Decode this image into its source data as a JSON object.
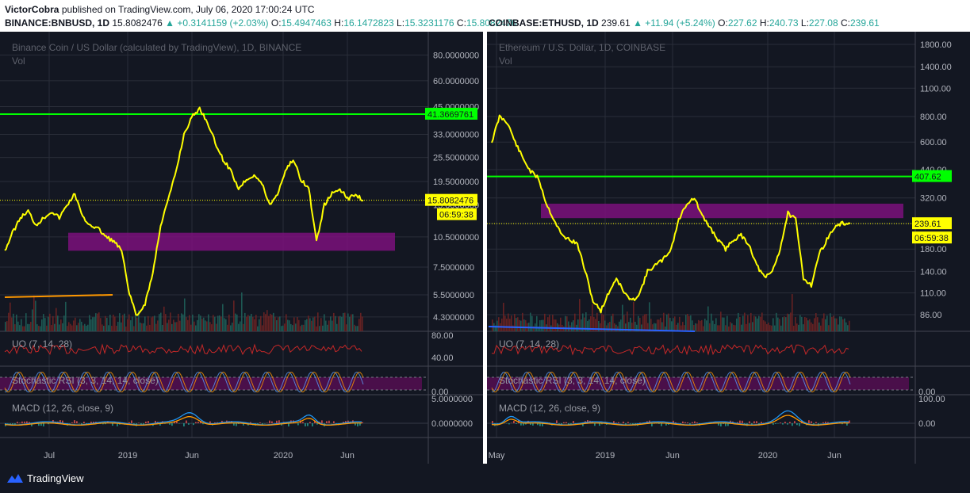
{
  "header": {
    "author": "VictorCobra",
    "published": "published on TradingView.com, July 06, 2020 17:00:24 UTC",
    "left_quote": {
      "symbol": "BINANCE:BNBUSD, 1D",
      "last": "15.8082476",
      "change": "▲ +0.3141159 (+2.03%)",
      "o_label": "O:",
      "o": "15.4947463",
      "h_label": "H:",
      "h": "16.1472823",
      "l_label": "L:",
      "l": "15.3231176",
      "c_label": "C:",
      "c": "15.8082476"
    },
    "right_quote": {
      "symbol": "COINBASE:ETHUSD, 1D",
      "last": "239.61",
      "change": "▲ +11.94 (+5.24%)",
      "o_label": "O:",
      "o": "227.62",
      "h_label": "H:",
      "h": "240.73",
      "l_label": "L:",
      "l": "227.08",
      "c_label": "C:",
      "c": "239.61"
    }
  },
  "footer": {
    "brand": "TradingView"
  },
  "colors": {
    "price_line": "#ffff00",
    "support_line": "#00ff00",
    "zone": "#7b107b",
    "trend_left": "#ff9800",
    "trend_right": "#2962ff",
    "indicator_line": "#c62828",
    "macd_line": "#2196f3",
    "signal_line": "#ff9800",
    "stoch_band": "#4a0f4a"
  },
  "chart_data": [
    {
      "type": "line",
      "title": "Binance Coin / US Dollar (calculated by TradingView), 1D, BINANCE",
      "subtitle": "Vol",
      "y_scale": "log",
      "y_ticks": [
        "80.0000000",
        "60.0000000",
        "45.0000000",
        "33.0000000",
        "25.5000000",
        "19.5000000",
        "15.0000000",
        "10.5000000",
        "7.5000000",
        "5.5000000",
        "4.3000000"
      ],
      "x_ticks": [
        "Jul",
        "2019",
        "Jun",
        "2020",
        "Jun"
      ],
      "horizontal_line": {
        "label": "41.3669761",
        "value": 41.3669761
      },
      "last_price": {
        "label": "15.8082476",
        "value": 15.8082476,
        "countdown": "06:59:38"
      },
      "zone": {
        "low": 9.0,
        "high": 11.0
      },
      "series": [
        {
          "values": [
            9.0,
            11,
            13,
            14,
            12,
            13,
            14,
            13,
            15,
            17,
            13,
            12,
            11.5,
            10.5,
            10,
            9,
            5.5,
            4.3,
            5,
            7,
            12,
            16,
            22,
            33,
            40,
            44,
            38,
            30,
            25,
            22,
            18,
            20,
            21,
            19,
            15,
            17,
            22,
            25,
            20,
            18,
            10,
            15,
            17,
            18,
            16,
            17,
            15.8
          ]
        }
      ],
      "indicators": [
        {
          "name": "UO (7, 14, 28)",
          "ticks": [
            "80.00",
            "40.00"
          ]
        },
        {
          "name": "Stochastic RSI (3, 3, 14, 14, close)",
          "ticks": [
            "0.00"
          ]
        },
        {
          "name": "MACD (12, 26, close, 9)",
          "ticks": [
            "5.0000000",
            "0.0000000"
          ]
        }
      ]
    },
    {
      "type": "line",
      "title": "Ethereum / U.S. Dollar, 1D, COINBASE",
      "subtitle": "Vol",
      "y_scale": "log",
      "y_ticks": [
        "1800.00",
        "1400.00",
        "1100.00",
        "800.00",
        "600.00",
        "440.00",
        "320.00",
        "240.00",
        "180.00",
        "140.00",
        "110.00",
        "86.00"
      ],
      "x_ticks": [
        "May",
        "2019",
        "Jun",
        "2020",
        "Jun"
      ],
      "horizontal_line": {
        "label": "407.62",
        "value": 407.62
      },
      "last_price": {
        "label": "239.61",
        "value": 239.61,
        "countdown": "06:59:38"
      },
      "zone": {
        "low": 255,
        "high": 300
      },
      "series": [
        {
          "values": [
            600,
            800,
            750,
            600,
            500,
            430,
            400,
            300,
            250,
            210,
            200,
            190,
            140,
            100,
            90,
            110,
            130,
            110,
            100,
            110,
            140,
            150,
            160,
            180,
            250,
            300,
            320,
            260,
            230,
            200,
            180,
            200,
            210,
            190,
            150,
            130,
            140,
            180,
            270,
            250,
            130,
            120,
            170,
            200,
            230,
            240,
            239.6
          ]
        }
      ],
      "indicators": [
        {
          "name": "UO (7, 14, 28)",
          "ticks": []
        },
        {
          "name": "Stochastic RSI (3, 3, 14, 14, close)",
          "ticks": [
            "0.00"
          ]
        },
        {
          "name": "MACD (12, 26, close, 9)",
          "ticks": [
            "100.00",
            "0.00"
          ]
        }
      ]
    }
  ]
}
